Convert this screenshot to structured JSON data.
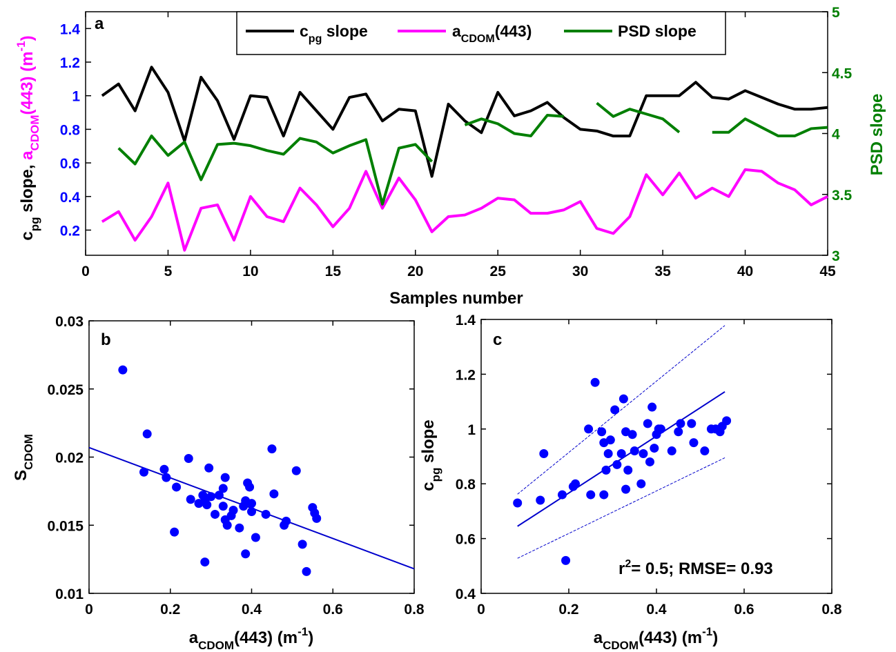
{
  "colors": {
    "black": "#000000",
    "magenta": "#ff00ff",
    "green": "#007f00",
    "blue": "#0000ff",
    "marker": "#0000ff",
    "fit": "#0000cc"
  },
  "chart_data": [
    {
      "id": "a",
      "panel_label": "a",
      "type": "line",
      "xlabel": "Samples number",
      "ylabel_left": {
        "c": "c",
        "pg": "pg",
        "slope": " slope, ",
        "a": "a",
        "cdom": "CDOM",
        "tail": "(443) (m",
        "exp": "-1",
        "close": ")"
      },
      "ylabel_right": "PSD slope",
      "xlim": [
        0,
        45
      ],
      "ylim_left": [
        0.05,
        1.5
      ],
      "ylim_right": [
        3,
        5
      ],
      "xticks": [
        "0",
        "5",
        "10",
        "15",
        "20",
        "25",
        "30",
        "35",
        "40",
        "45"
      ],
      "xtick_values": [
        0,
        5,
        10,
        15,
        20,
        25,
        30,
        35,
        40,
        45
      ],
      "yticks_left": [
        "0.2",
        "0.4",
        "0.6",
        "0.8",
        "1",
        "1.2",
        "1.4"
      ],
      "ytick_left_values": [
        0.2,
        0.4,
        0.6,
        0.8,
        1.0,
        1.2,
        1.4
      ],
      "yticks_right": [
        "3",
        "3.5",
        "4",
        "4.5",
        "5"
      ],
      "ytick_right_values": [
        3,
        3.5,
        4,
        4.5,
        5
      ],
      "grid": false,
      "legend": {
        "placement": "top",
        "entries": [
          {
            "main": "c",
            "sub": "pg",
            "rest": " slope"
          },
          {
            "main": "a",
            "sub": "CDOM",
            "rest": "(443)"
          },
          {
            "main": "PSD slope",
            "sub": "",
            "rest": ""
          }
        ]
      },
      "series": [
        {
          "name": "cpg slope",
          "axis": "left",
          "x": [
            1,
            2,
            3,
            4,
            5,
            6,
            7,
            8,
            9,
            10,
            11,
            12,
            13,
            14,
            15,
            16,
            17,
            18,
            19,
            20,
            21,
            22,
            23,
            24,
            25,
            26,
            27,
            28,
            29,
            30,
            31,
            32,
            33,
            34,
            35,
            36,
            37,
            38,
            39,
            40,
            41,
            42,
            43,
            44,
            45
          ],
          "y": [
            1.0,
            1.07,
            0.91,
            1.17,
            1.02,
            0.73,
            1.11,
            0.97,
            0.74,
            1.0,
            0.99,
            0.76,
            1.02,
            0.91,
            0.8,
            0.99,
            1.01,
            0.85,
            0.92,
            0.91,
            0.52,
            0.95,
            0.85,
            0.78,
            1.02,
            0.88,
            0.91,
            0.96,
            0.87,
            0.8,
            0.79,
            0.76,
            0.76,
            1.0,
            1.0,
            1.0,
            1.08,
            0.99,
            0.98,
            1.03,
            0.99,
            0.95,
            0.92,
            0.92,
            0.93
          ]
        },
        {
          "name": "aCDOM(443)",
          "axis": "left",
          "x": [
            1,
            2,
            3,
            4,
            5,
            6,
            7,
            8,
            9,
            10,
            11,
            12,
            13,
            14,
            15,
            16,
            17,
            18,
            19,
            20,
            21,
            22,
            23,
            24,
            25,
            26,
            27,
            28,
            29,
            30,
            31,
            32,
            33,
            34,
            35,
            36,
            37,
            38,
            39,
            40,
            41,
            42,
            43,
            44,
            45
          ],
          "y": [
            0.25,
            0.31,
            0.14,
            0.28,
            0.48,
            0.08,
            0.33,
            0.35,
            0.14,
            0.4,
            0.28,
            0.25,
            0.45,
            0.35,
            0.22,
            0.33,
            0.55,
            0.33,
            0.51,
            0.38,
            0.19,
            0.28,
            0.29,
            0.33,
            0.39,
            0.38,
            0.3,
            0.3,
            0.32,
            0.37,
            0.21,
            0.18,
            0.28,
            0.53,
            0.41,
            0.54,
            0.39,
            0.45,
            0.4,
            0.56,
            0.55,
            0.48,
            0.44,
            0.35,
            0.4
          ]
        },
        {
          "name": "PSD slope",
          "axis": "right",
          "segments": [
            {
              "x": [
                2,
                3,
                4,
                5,
                6,
                7,
                8,
                9,
                10,
                11,
                12,
                13,
                14,
                15,
                16,
                17,
                18,
                19,
                20,
                21
              ],
              "y": [
                3.88,
                3.75,
                3.98,
                3.82,
                3.93,
                3.62,
                3.91,
                3.92,
                3.9,
                3.86,
                3.83,
                3.96,
                3.93,
                3.84,
                3.9,
                3.95,
                3.42,
                3.88,
                3.91,
                3.77
              ]
            },
            {
              "x": [
                23,
                24,
                25,
                26,
                27,
                28,
                29
              ],
              "y": [
                4.07,
                4.12,
                4.08,
                4.0,
                3.98,
                4.15,
                4.14
              ]
            },
            {
              "x": [
                31,
                32,
                33,
                34,
                35,
                36
              ],
              "y": [
                4.25,
                4.14,
                4.2,
                4.16,
                4.12,
                4.01
              ]
            },
            {
              "x": [
                38,
                39,
                40,
                41,
                42,
                43,
                44,
                45
              ],
              "y": [
                4.01,
                4.01,
                4.12,
                4.05,
                3.98,
                3.98,
                4.04,
                4.05
              ]
            }
          ]
        }
      ]
    },
    {
      "id": "b",
      "panel_label": "b",
      "type": "scatter",
      "xlabel": {
        "a": "a",
        "cdom": "CDOM",
        "tail": "(443) (m",
        "exp": "-1",
        "close": ")"
      },
      "ylabel": {
        "s": "S",
        "cdom": "CDOM"
      },
      "xlim": [
        0,
        0.8
      ],
      "ylim": [
        0.01,
        0.03
      ],
      "xticks": [
        "0",
        "0.2",
        "0.4",
        "0.6",
        "0.8"
      ],
      "xtick_values": [
        0,
        0.2,
        0.4,
        0.6,
        0.8
      ],
      "yticks": [
        "0.01",
        "0.015",
        "0.02",
        "0.025",
        "0.03"
      ],
      "ytick_values": [
        0.01,
        0.015,
        0.02,
        0.025,
        0.03
      ],
      "grid": false,
      "points": [
        [
          0.083,
          0.0264
        ],
        [
          0.143,
          0.0217
        ],
        [
          0.135,
          0.0189
        ],
        [
          0.185,
          0.0191
        ],
        [
          0.19,
          0.0185
        ],
        [
          0.245,
          0.0199
        ],
        [
          0.215,
          0.0178
        ],
        [
          0.21,
          0.0145
        ],
        [
          0.25,
          0.0169
        ],
        [
          0.27,
          0.0166
        ],
        [
          0.28,
          0.0172
        ],
        [
          0.285,
          0.0168
        ],
        [
          0.29,
          0.0165
        ],
        [
          0.295,
          0.0192
        ],
        [
          0.3,
          0.0171
        ],
        [
          0.31,
          0.0158
        ],
        [
          0.32,
          0.0172
        ],
        [
          0.33,
          0.0177
        ],
        [
          0.335,
          0.0185
        ],
        [
          0.33,
          0.0164
        ],
        [
          0.335,
          0.0154
        ],
        [
          0.34,
          0.015
        ],
        [
          0.35,
          0.0157
        ],
        [
          0.355,
          0.0161
        ],
        [
          0.37,
          0.0148
        ],
        [
          0.38,
          0.0164
        ],
        [
          0.385,
          0.0168
        ],
        [
          0.39,
          0.0181
        ],
        [
          0.395,
          0.0178
        ],
        [
          0.4,
          0.0166
        ],
        [
          0.4,
          0.016
        ],
        [
          0.385,
          0.0129
        ],
        [
          0.41,
          0.0141
        ],
        [
          0.435,
          0.0158
        ],
        [
          0.45,
          0.0206
        ],
        [
          0.455,
          0.0173
        ],
        [
          0.48,
          0.015
        ],
        [
          0.485,
          0.0153
        ],
        [
          0.51,
          0.019
        ],
        [
          0.525,
          0.0136
        ],
        [
          0.535,
          0.0116
        ],
        [
          0.55,
          0.0163
        ],
        [
          0.555,
          0.0159
        ],
        [
          0.56,
          0.0155
        ],
        [
          0.285,
          0.0123
        ]
      ],
      "fit_line": {
        "x": [
          0,
          0.8
        ],
        "y": [
          0.0207,
          0.0118
        ]
      }
    },
    {
      "id": "c",
      "panel_label": "c",
      "type": "scatter",
      "xlabel": {
        "a": "a",
        "cdom": "CDOM",
        "tail": "(443) (m",
        "exp": "-1",
        "close": ")"
      },
      "ylabel": {
        "c": "c",
        "pg": "pg",
        "rest": " slope"
      },
      "xlim": [
        0,
        0.8
      ],
      "ylim": [
        0.4,
        1.4
      ],
      "xticks": [
        "0",
        "0.2",
        "0.4",
        "0.6",
        "0.8"
      ],
      "xtick_values": [
        0,
        0.2,
        0.4,
        0.6,
        0.8
      ],
      "yticks": [
        "0.4",
        "0.6",
        "0.8",
        "1",
        "1.2",
        "1.4"
      ],
      "ytick_values": [
        0.4,
        0.6,
        0.8,
        1.0,
        1.2,
        1.4
      ],
      "grid": false,
      "annotation": {
        "r": "r",
        "sup": "2",
        "rest": "= 0.5; RMSE= 0.93"
      },
      "points": [
        [
          0.083,
          0.73
        ],
        [
          0.135,
          0.74
        ],
        [
          0.143,
          0.91
        ],
        [
          0.185,
          0.76
        ],
        [
          0.193,
          0.52
        ],
        [
          0.21,
          0.79
        ],
        [
          0.215,
          0.8
        ],
        [
          0.245,
          1.0
        ],
        [
          0.25,
          0.76
        ],
        [
          0.26,
          1.17
        ],
        [
          0.275,
          0.99
        ],
        [
          0.28,
          0.76
        ],
        [
          0.28,
          0.95
        ],
        [
          0.285,
          0.85
        ],
        [
          0.29,
          0.91
        ],
        [
          0.295,
          0.96
        ],
        [
          0.305,
          1.07
        ],
        [
          0.31,
          0.87
        ],
        [
          0.32,
          0.91
        ],
        [
          0.325,
          1.11
        ],
        [
          0.33,
          0.78
        ],
        [
          0.33,
          0.99
        ],
        [
          0.335,
          0.85
        ],
        [
          0.345,
          0.98
        ],
        [
          0.35,
          0.92
        ],
        [
          0.365,
          0.8
        ],
        [
          0.37,
          0.91
        ],
        [
          0.38,
          1.02
        ],
        [
          0.385,
          0.88
        ],
        [
          0.39,
          1.08
        ],
        [
          0.395,
          0.93
        ],
        [
          0.4,
          0.98
        ],
        [
          0.405,
          1.0
        ],
        [
          0.41,
          1.0
        ],
        [
          0.435,
          0.92
        ],
        [
          0.45,
          0.99
        ],
        [
          0.455,
          1.02
        ],
        [
          0.48,
          1.02
        ],
        [
          0.485,
          0.95
        ],
        [
          0.51,
          0.92
        ],
        [
          0.525,
          1.0
        ],
        [
          0.535,
          1.0
        ],
        [
          0.545,
          0.99
        ],
        [
          0.55,
          1.01
        ],
        [
          0.56,
          1.03
        ]
      ],
      "fit_line": {
        "x": [
          0.083,
          0.556
        ],
        "y": [
          0.645,
          1.136
        ]
      },
      "confidence_upper": {
        "x": [
          0.083,
          0.556
        ],
        "y": [
          0.762,
          1.378
        ]
      },
      "confidence_lower": {
        "x": [
          0.083,
          0.556
        ],
        "y": [
          0.528,
          0.895
        ]
      }
    }
  ]
}
